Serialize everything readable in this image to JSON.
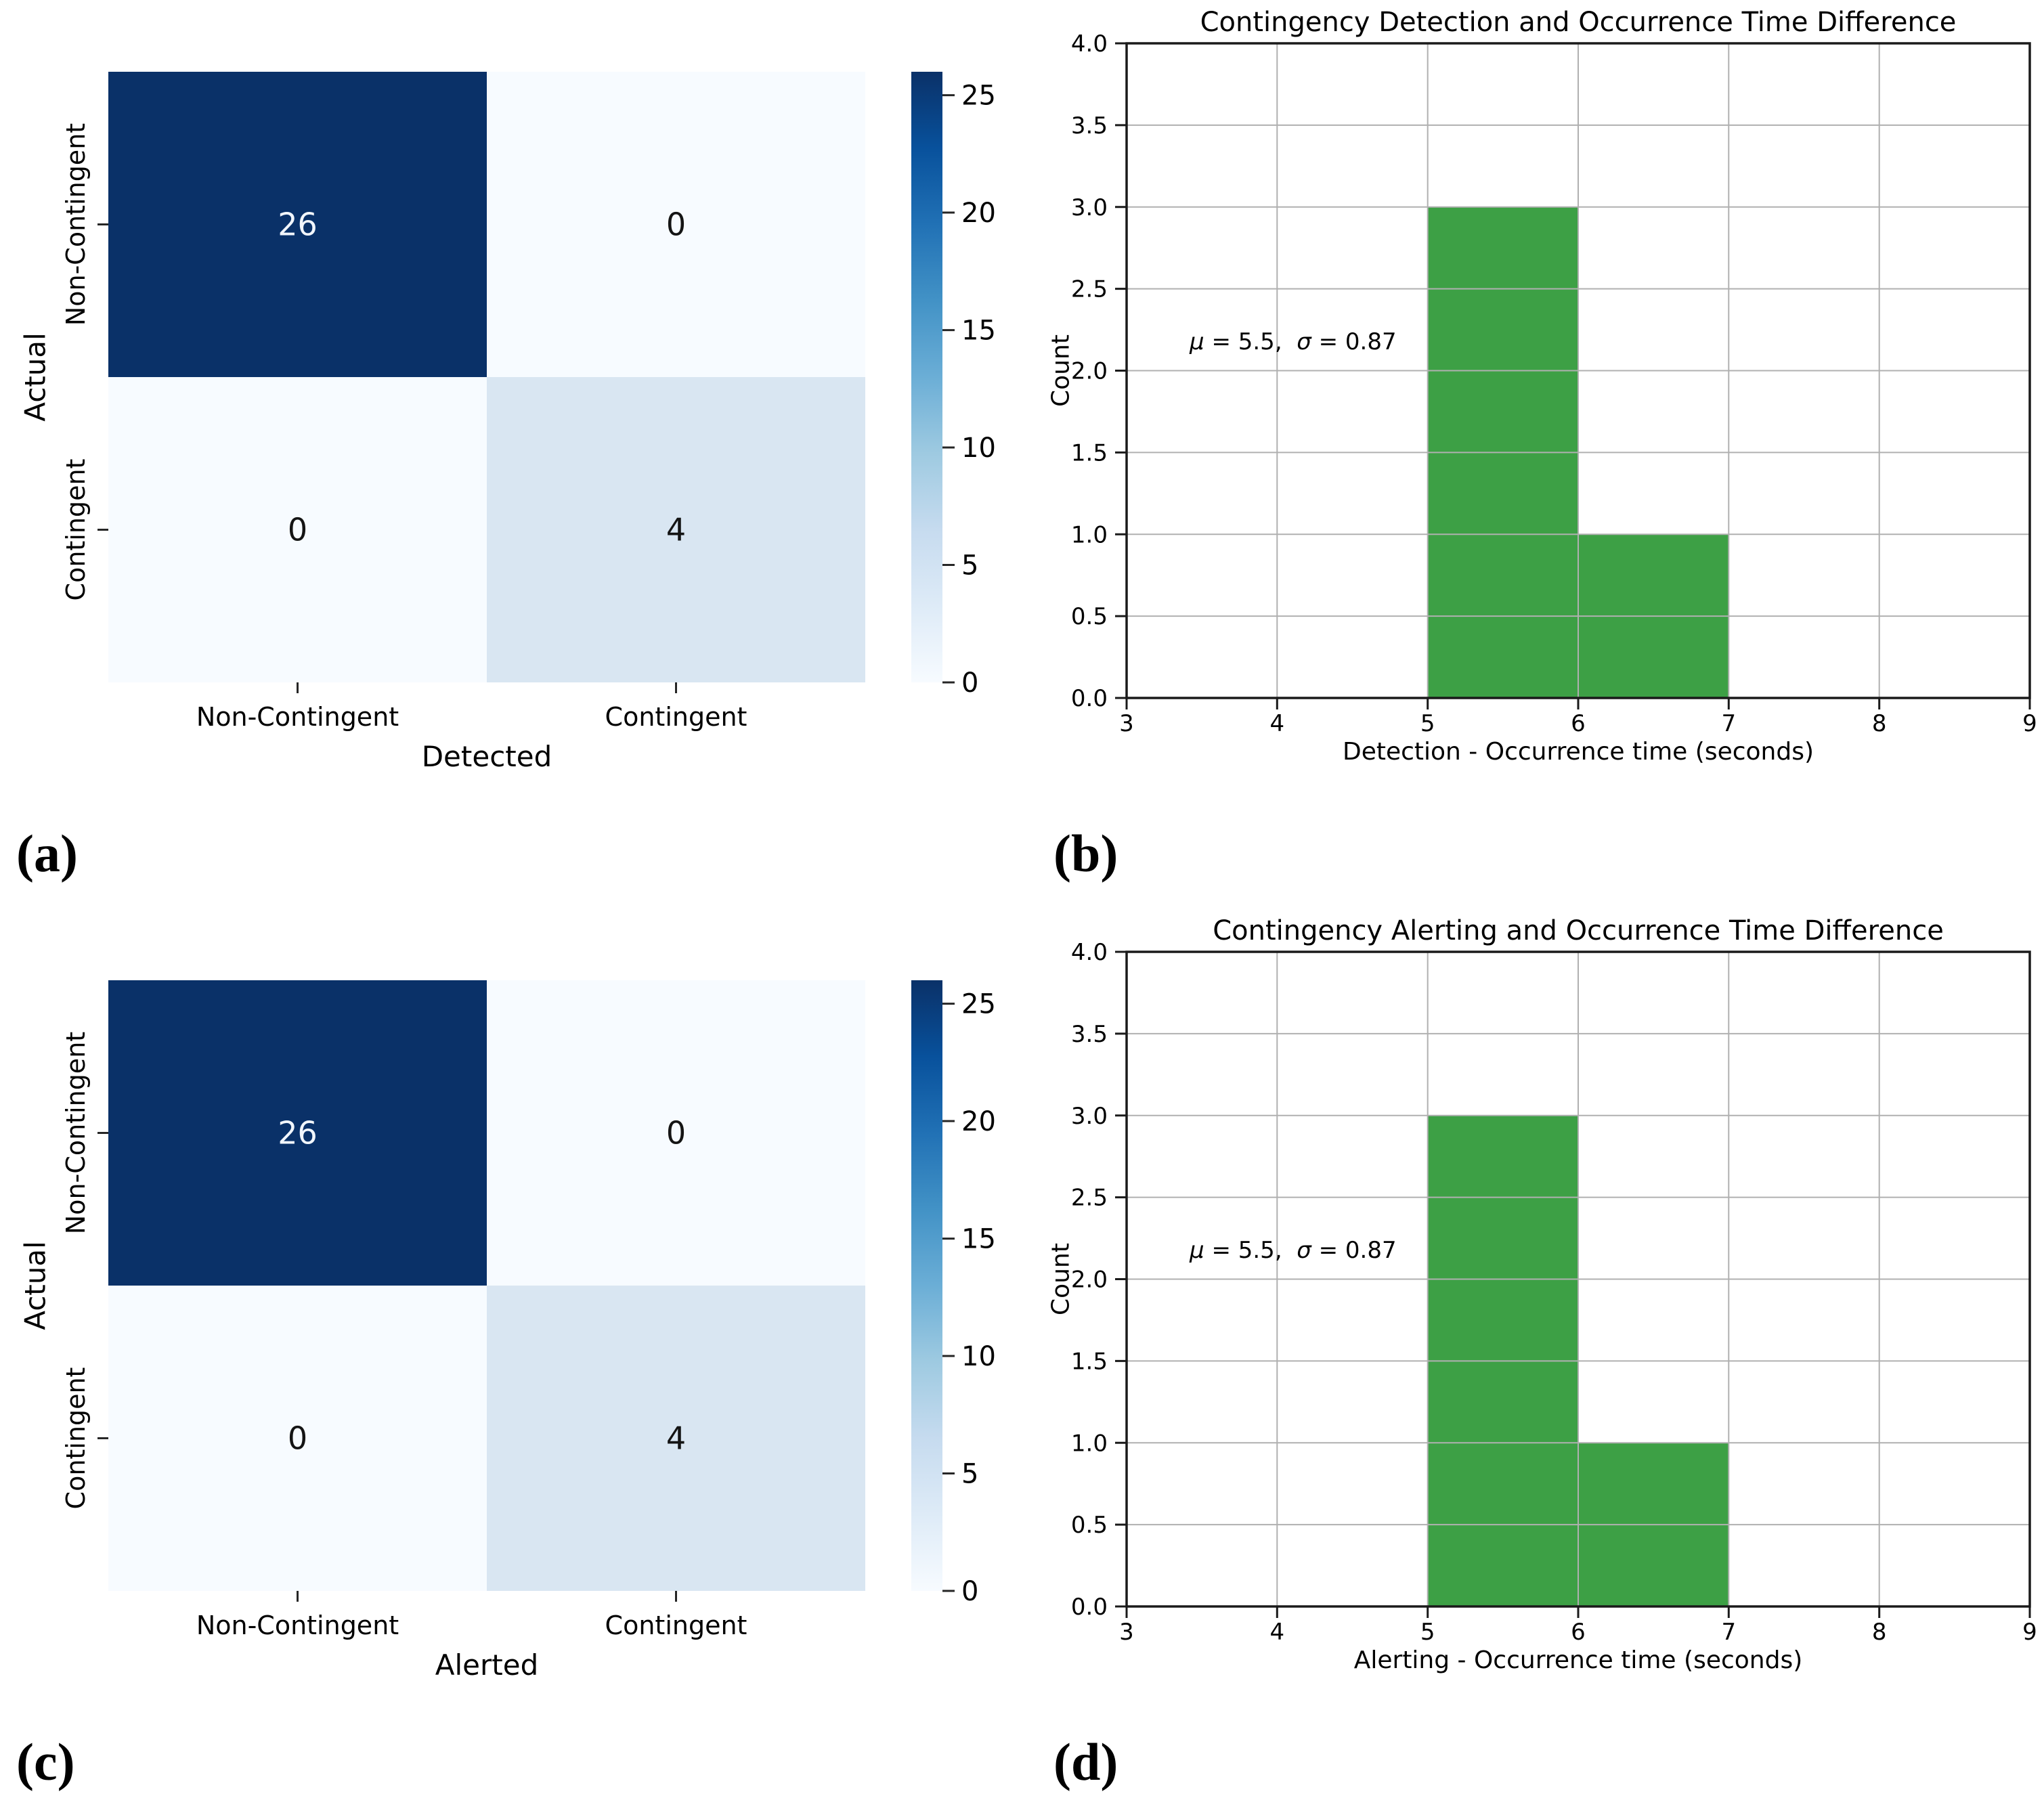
{
  "panel_labels": [
    "(a)",
    "(b)",
    "(c)",
    "(d)"
  ],
  "colors": {
    "background": "#ffffff",
    "heat_max": "#0a3168",
    "heat_low": "#d9e6f2",
    "heat_zero": "#f7fbff",
    "bar_green": "#3da045",
    "grid": "#b0b0b0",
    "spine": "#1a1a1a"
  },
  "chart_data": [
    {
      "type": "heatmap",
      "panel": "a",
      "ylabel": "Actual",
      "xlabel": "Detected",
      "row_labels": [
        "Non-Contingent",
        "Contingent"
      ],
      "col_labels": [
        "Non-Contingent",
        "Contingent"
      ],
      "values": [
        [
          26,
          0
        ],
        [
          0,
          4
        ]
      ],
      "vmin": 0,
      "vmax": 26,
      "colormap": "Blues",
      "colorbar_ticks": [
        "0",
        "5",
        "10",
        "15",
        "20",
        "25"
      ]
    },
    {
      "type": "histogram",
      "panel": "b",
      "title": "Contingency Detection and Occurrence Time Difference",
      "xlabel": "Detection - Occurrence time (seconds)",
      "ylabel": "Count",
      "bin_edges": [
        5,
        6,
        7
      ],
      "counts": [
        3,
        1
      ],
      "xlim": [
        3,
        9
      ],
      "ylim": [
        0,
        4
      ],
      "xticks": [
        "3",
        "4",
        "5",
        "6",
        "7",
        "8",
        "9"
      ],
      "yticks": [
        "0.0",
        "0.5",
        "1.0",
        "1.5",
        "2.0",
        "2.5",
        "3.0",
        "3.5",
        "4.0"
      ],
      "grid": true,
      "legend": false,
      "mu": 5.5,
      "sigma": 0.87,
      "annotation": "μ = 5.5,  σ = 0.87",
      "annotation_parts": [
        "μ",
        " = 5.5,  ",
        "σ",
        " = 0.87"
      ]
    },
    {
      "type": "heatmap",
      "panel": "c",
      "ylabel": "Actual",
      "xlabel": "Alerted",
      "row_labels": [
        "Non-Contingent",
        "Contingent"
      ],
      "col_labels": [
        "Non-Contingent",
        "Contingent"
      ],
      "values": [
        [
          26,
          0
        ],
        [
          0,
          4
        ]
      ],
      "vmin": 0,
      "vmax": 26,
      "colormap": "Blues",
      "colorbar_ticks": [
        "0",
        "5",
        "10",
        "15",
        "20",
        "25"
      ]
    },
    {
      "type": "histogram",
      "panel": "d",
      "title": "Contingency Alerting and Occurrence Time Difference",
      "xlabel": "Alerting - Occurrence time (seconds)",
      "ylabel": "Count",
      "bin_edges": [
        5,
        6,
        7
      ],
      "counts": [
        3,
        1
      ],
      "xlim": [
        3,
        9
      ],
      "ylim": [
        0,
        4
      ],
      "xticks": [
        "3",
        "4",
        "5",
        "6",
        "7",
        "8",
        "9"
      ],
      "yticks": [
        "0.0",
        "0.5",
        "1.0",
        "1.5",
        "2.0",
        "2.5",
        "3.0",
        "3.5",
        "4.0"
      ],
      "grid": true,
      "legend": false,
      "mu": 5.5,
      "sigma": 0.87,
      "annotation": "μ = 5.5,  σ = 0.87",
      "annotation_parts": [
        "μ",
        " = 5.5,  ",
        "σ",
        " = 0.87"
      ]
    }
  ]
}
